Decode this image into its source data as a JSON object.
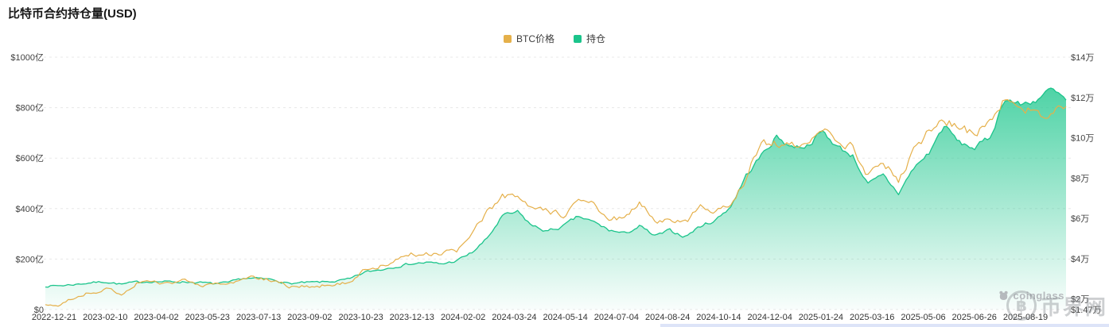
{
  "title": "比特币合约持仓量(USD)",
  "legend": {
    "items": [
      {
        "label": "BTC价格",
        "color": "#E5B04A"
      },
      {
        "label": "持仓",
        "color": "#1BC48B"
      }
    ]
  },
  "watermarks": {
    "coinglass": "coinglass",
    "bijie_name": "币界网",
    "bijie_symbol": "฿"
  },
  "colors": {
    "oi_line": "#1BC48B",
    "oi_fill": "#2FCB96",
    "btc_line": "#E5B04A",
    "grid": "#e8e8e8",
    "axis_text": "#3f3f3f",
    "scroll_strip": "#dde4f8"
  },
  "chart_data": {
    "type": "area",
    "title": "比特币合约持仓量(USD)",
    "grid": "horizontal-dashed",
    "legend_position": "top-center",
    "left_axis": {
      "unit": "亿 USD",
      "min": 0,
      "max": 1000,
      "tick_values": [
        1000,
        800,
        600,
        400,
        200,
        0
      ],
      "tick_labels": [
        "$1000亿",
        "$800亿",
        "$600亿",
        "$400亿",
        "$200亿",
        "$0"
      ]
    },
    "right_axis": {
      "unit": "万 USD",
      "min": 1.47,
      "max": 14,
      "tick_values": [
        14,
        12,
        10,
        8,
        6,
        4,
        2
      ],
      "tick_labels": [
        "$14万",
        "$12万",
        "$10万",
        "$8万",
        "$6万",
        "$4万",
        "$2万"
      ],
      "min_label": "$1.47万"
    },
    "x_tick_labels": [
      "2022-12-21",
      "2023-02-10",
      "2023-04-02",
      "2023-05-23",
      "2023-07-13",
      "2023-09-02",
      "2023-10-23",
      "2023-12-13",
      "2024-02-02",
      "2024-03-24",
      "2024-05-14",
      "2024-07-04",
      "2024-08-24",
      "2024-10-14",
      "2024-12-04",
      "2025-01-24",
      "2025-03-16",
      "2025-05-06",
      "2025-06-26",
      "2025-08-19"
    ],
    "dates": [
      "2022-12-21",
      "2023-01-05",
      "2023-01-20",
      "2023-02-04",
      "2023-02-19",
      "2023-03-06",
      "2023-03-21",
      "2023-04-05",
      "2023-04-20",
      "2023-05-05",
      "2023-05-20",
      "2023-06-04",
      "2023-06-19",
      "2023-07-04",
      "2023-07-19",
      "2023-08-03",
      "2023-08-18",
      "2023-09-02",
      "2023-09-17",
      "2023-10-02",
      "2023-10-17",
      "2023-11-01",
      "2023-11-16",
      "2023-12-01",
      "2023-12-16",
      "2023-12-31",
      "2024-01-15",
      "2024-01-30",
      "2024-02-14",
      "2024-02-29",
      "2024-03-15",
      "2024-03-30",
      "2024-04-14",
      "2024-04-29",
      "2024-05-14",
      "2024-05-29",
      "2024-06-13",
      "2024-06-28",
      "2024-07-13",
      "2024-07-28",
      "2024-08-12",
      "2024-08-27",
      "2024-09-11",
      "2024-09-26",
      "2024-10-11",
      "2024-10-26",
      "2024-11-10",
      "2024-11-25",
      "2024-12-10",
      "2024-12-25",
      "2025-01-09",
      "2025-01-24",
      "2025-02-08",
      "2025-02-23",
      "2025-03-10",
      "2025-03-25",
      "2025-04-09",
      "2025-04-24",
      "2025-05-09",
      "2025-05-24",
      "2025-06-08",
      "2025-06-23",
      "2025-07-08",
      "2025-07-23",
      "2025-08-07",
      "2025-08-22",
      "2025-09-06",
      "2025-09-21"
    ],
    "series": [
      {
        "name": "持仓",
        "type": "area",
        "axis": "left",
        "color": "#1BC48B",
        "values": [
          93,
          95,
          100,
          107,
          110,
          100,
          108,
          112,
          110,
          110,
          108,
          102,
          105,
          124,
          122,
          118,
          103,
          106,
          108,
          112,
          120,
          148,
          158,
          172,
          182,
          186,
          180,
          193,
          225,
          280,
          370,
          385,
          330,
          310,
          330,
          368,
          345,
          315,
          300,
          330,
          290,
          312,
          290,
          330,
          355,
          410,
          530,
          610,
          685,
          645,
          650,
          705,
          645,
          610,
          495,
          530,
          460,
          560,
          620,
          730,
          660,
          640,
          680,
          840,
          810,
          830,
          870,
          830
        ]
      },
      {
        "name": "BTC价格",
        "type": "line",
        "axis": "right",
        "color": "#E5B04A",
        "values": [
          1.68,
          1.69,
          2.1,
          2.33,
          2.45,
          2.24,
          2.8,
          2.81,
          2.84,
          2.9,
          2.69,
          2.71,
          2.65,
          3.09,
          2.99,
          2.92,
          2.61,
          2.6,
          2.65,
          2.75,
          2.86,
          3.45,
          3.65,
          3.87,
          4.22,
          4.23,
          4.29,
          4.36,
          5.18,
          6.25,
          7.18,
          6.98,
          6.4,
          6.33,
          6.15,
          6.77,
          6.67,
          6.08,
          5.91,
          6.82,
          5.9,
          5.95,
          5.76,
          6.52,
          6.28,
          6.7,
          8.05,
          9.8,
          9.75,
          9.9,
          9.45,
          10.5,
          9.65,
          9.6,
          8.1,
          8.77,
          7.95,
          9.35,
          10.3,
          10.95,
          10.57,
          10.1,
          10.9,
          11.85,
          11.65,
          11.3,
          11.05,
          11.55
        ]
      }
    ],
    "noise": {
      "seed": 7,
      "subdivisions": 6,
      "oi_amp": 9,
      "price_amp": 0.13
    }
  }
}
